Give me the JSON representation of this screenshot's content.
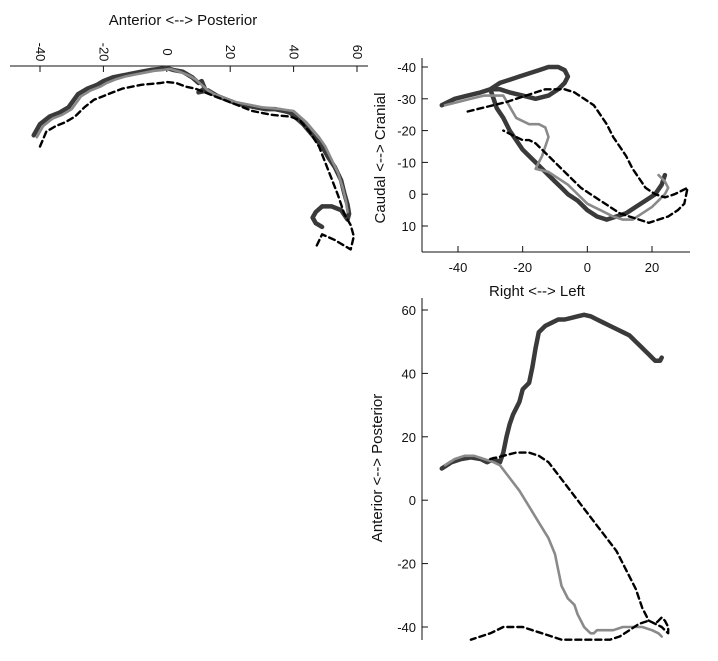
{
  "chart_data": [
    {
      "type": "line",
      "panel": "top-left",
      "xlabel": "Anterior <--> Posterior",
      "ylabel": "",
      "xticks": [
        "-40",
        "-20",
        "0",
        "20",
        "40",
        "60"
      ],
      "xlim": [
        -45,
        62
      ],
      "ylim": [
        0,
        1
      ],
      "series": [
        {
          "style": "solid-dark",
          "color": "#3a3a3a",
          "x": [
            -42,
            -40,
            -37,
            -34,
            -31,
            -28,
            -25,
            -22,
            -20,
            -17,
            -14,
            -11,
            -8,
            -5,
            -2,
            0,
            2,
            5,
            8,
            10,
            11,
            12,
            10,
            13,
            16,
            19,
            22,
            25,
            28,
            31,
            34,
            37,
            39,
            41,
            43,
            45,
            47,
            49,
            51,
            53,
            55,
            56,
            57,
            57.5,
            57,
            55,
            52,
            49,
            47,
            46,
            47,
            49
          ],
          "y": [
            0.64,
            0.7,
            0.74,
            0.76,
            0.79,
            0.86,
            0.89,
            0.91,
            0.93,
            0.95,
            0.96,
            0.97,
            0.98,
            0.99,
            0.995,
            1.0,
            0.99,
            0.98,
            0.95,
            0.92,
            0.93,
            0.89,
            0.87,
            0.88,
            0.85,
            0.83,
            0.81,
            0.8,
            0.79,
            0.78,
            0.78,
            0.77,
            0.76,
            0.73,
            0.7,
            0.66,
            0.62,
            0.58,
            0.52,
            0.47,
            0.4,
            0.33,
            0.27,
            0.22,
            0.19,
            0.24,
            0.26,
            0.26,
            0.23,
            0.2,
            0.17,
            0.15
          ]
        },
        {
          "style": "solid-light",
          "color": "#8a8a8a",
          "x": [
            -41,
            -39,
            -36,
            -33,
            -30,
            -27,
            -24,
            -21,
            -19,
            -16,
            -13,
            -10,
            -7,
            -4,
            -1,
            1,
            4,
            7,
            9,
            11,
            13,
            15,
            18,
            21,
            24,
            27,
            30,
            33,
            36,
            38,
            40,
            42,
            44,
            46,
            48,
            50,
            52,
            54,
            55.5,
            56.5,
            57
          ],
          "y": [
            0.63,
            0.69,
            0.73,
            0.75,
            0.78,
            0.85,
            0.88,
            0.9,
            0.92,
            0.94,
            0.955,
            0.965,
            0.975,
            0.985,
            0.99,
            0.995,
            0.98,
            0.96,
            0.94,
            0.91,
            0.88,
            0.86,
            0.84,
            0.82,
            0.81,
            0.8,
            0.79,
            0.785,
            0.78,
            0.775,
            0.77,
            0.74,
            0.71,
            0.67,
            0.63,
            0.58,
            0.51,
            0.44,
            0.36,
            0.29,
            0.23
          ]
        },
        {
          "style": "dashed",
          "color": "#000000",
          "x": [
            -40,
            -38,
            -35,
            -32,
            -29,
            -26,
            -23,
            -20,
            -17,
            -14,
            -11,
            -8,
            -5,
            -2,
            0,
            3,
            6,
            9,
            12,
            15,
            18,
            21,
            24,
            27,
            30,
            33,
            36,
            39,
            42,
            45,
            48,
            51,
            54,
            56,
            58,
            59,
            58,
            56,
            53,
            49,
            47
          ],
          "y": [
            0.58,
            0.66,
            0.69,
            0.71,
            0.74,
            0.79,
            0.83,
            0.85,
            0.87,
            0.89,
            0.9,
            0.91,
            0.915,
            0.92,
            0.925,
            0.92,
            0.9,
            0.89,
            0.87,
            0.85,
            0.83,
            0.81,
            0.79,
            0.77,
            0.76,
            0.75,
            0.745,
            0.74,
            0.72,
            0.66,
            0.58,
            0.45,
            0.32,
            0.22,
            0.16,
            0.1,
            0.03,
            0.05,
            0.08,
            0.11,
            0.04
          ]
        }
      ]
    },
    {
      "type": "line",
      "panel": "top-right",
      "xlabel": "Right <--> Left",
      "ylabel": "Caudal <--> Cranial",
      "xlim": [
        -50,
        32
      ],
      "ylim": [
        18,
        -41
      ],
      "xticks": [
        -40,
        -20,
        0,
        20
      ],
      "yticks": [
        -40,
        -30,
        -20,
        -10,
        0,
        10
      ],
      "series": [
        {
          "style": "solid-dark",
          "color": "#3a3a3a",
          "x": [
            -45,
            -41,
            -37,
            -33,
            -30,
            -27,
            -24,
            -21,
            -18,
            -15,
            -12,
            -9,
            -7,
            -6,
            -7,
            -9,
            -12,
            -16,
            -20,
            -24,
            -27,
            -30,
            -29,
            -28,
            -26,
            -24,
            -22,
            -20,
            -18,
            -16,
            -14,
            -12,
            -10,
            -8,
            -6,
            -3,
            0,
            3,
            6,
            9,
            12,
            15,
            18,
            21,
            23,
            24
          ],
          "y": [
            -28,
            -30,
            -31,
            -32,
            -33,
            -35,
            -36,
            -37,
            -38,
            -39,
            -40,
            -40,
            -39,
            -37,
            -35,
            -33,
            -31,
            -30,
            -31,
            -32,
            -33,
            -33,
            -30,
            -27,
            -24,
            -20,
            -17,
            -14,
            -12,
            -10,
            -8,
            -6,
            -4,
            -2,
            0,
            2,
            5,
            7,
            8,
            7,
            6,
            4,
            2,
            0,
            -3,
            -6
          ]
        },
        {
          "style": "solid-light",
          "color": "#8a8a8a",
          "x": [
            -44,
            -40,
            -36,
            -32,
            -29,
            -26,
            -22,
            -18,
            -15,
            -13,
            -12,
            -13,
            -14,
            -15,
            -16,
            -12,
            -9,
            -6,
            -4,
            -2,
            0,
            2,
            4,
            6,
            8,
            11,
            14,
            17,
            20,
            22,
            24,
            25,
            24,
            22
          ],
          "y": [
            -28,
            -29,
            -30,
            -31,
            -31,
            -31,
            -24,
            -22,
            -22,
            -21,
            -18,
            -15,
            -12,
            -10,
            -8,
            -7,
            -5,
            -3,
            -1,
            1,
            3,
            4,
            5,
            6,
            7,
            8,
            8,
            6,
            4,
            2,
            0,
            -2,
            -4,
            -6
          ]
        },
        {
          "style": "dashed",
          "color": "#000000",
          "x": [
            -37,
            -33,
            -29,
            -25,
            -22,
            -19,
            -16,
            -13,
            -10,
            -7,
            -4,
            -1,
            2,
            4,
            6,
            8,
            10,
            12,
            14,
            16,
            18,
            21,
            24,
            27,
            29,
            31,
            30,
            28,
            25,
            22,
            19,
            16,
            13,
            10,
            7,
            4,
            1,
            -2,
            -5,
            -8,
            -11,
            -14,
            -16,
            -18,
            -20,
            -22,
            -24,
            -26
          ],
          "y": [
            -26,
            -27,
            -28,
            -29,
            -30,
            -31,
            -32,
            -33,
            -33,
            -33,
            -32,
            -30,
            -28,
            -25,
            -22,
            -18,
            -15,
            -12,
            -8,
            -5,
            -2,
            0,
            1,
            0,
            -1,
            -2,
            3,
            5,
            7,
            8,
            9,
            8,
            7,
            6,
            4,
            2,
            0,
            -2,
            -5,
            -8,
            -11,
            -14,
            -16,
            -17,
            -17,
            -18,
            -19,
            -20
          ]
        }
      ]
    },
    {
      "type": "line",
      "panel": "bottom-right",
      "xlabel": "",
      "ylabel": "Anterior <--> Posterior",
      "xlim": [
        -50,
        32
      ],
      "ylim": [
        -44,
        62
      ],
      "yticks": [
        60,
        40,
        20,
        0,
        -20,
        -40
      ],
      "series": [
        {
          "style": "solid-dark",
          "color": "#3a3a3a",
          "x": [
            -45,
            -42,
            -39,
            -36,
            -33,
            -31,
            -29,
            -27,
            -26,
            -25,
            -24,
            -23,
            -22,
            -21,
            -20,
            -18,
            -17,
            -16,
            -15,
            -13,
            -11,
            -9,
            -7,
            -5,
            -3,
            -1,
            1,
            3,
            5,
            7,
            9,
            11,
            13,
            14,
            15,
            16,
            17,
            18,
            19,
            20,
            21,
            22,
            22.5,
            23
          ],
          "y": [
            10,
            12,
            13,
            13.5,
            13,
            12,
            13,
            12,
            15,
            20,
            24,
            27,
            29,
            31,
            35,
            37,
            42,
            48,
            53,
            55,
            56,
            57,
            57,
            57.5,
            58,
            58.5,
            58,
            57,
            56,
            55,
            54,
            53,
            52,
            51,
            50,
            49,
            48,
            47,
            46,
            45,
            44,
            44,
            44,
            45
          ]
        },
        {
          "style": "solid-light",
          "color": "#8a8a8a",
          "x": [
            -44,
            -41,
            -38,
            -35,
            -32,
            -29,
            -27,
            -24,
            -21,
            -18,
            -15,
            -12,
            -10,
            -9,
            -8,
            -6,
            -4,
            -3,
            -2,
            -1,
            0,
            1,
            2,
            3,
            5,
            8,
            11,
            14,
            17,
            20,
            22,
            23
          ],
          "y": [
            11,
            13,
            14,
            14,
            13,
            12,
            11,
            7,
            3,
            -2,
            -7,
            -12,
            -17,
            -22,
            -27,
            -31,
            -33,
            -36,
            -38,
            -40,
            -41,
            -42,
            -42,
            -41,
            -41,
            -41,
            -40,
            -40,
            -40,
            -41,
            -42,
            -43
          ]
        },
        {
          "style": "dashed",
          "color": "#000000",
          "x": [
            -30,
            -26,
            -22,
            -18,
            -15,
            -12,
            -9,
            -6,
            -3,
            0,
            3,
            6,
            9,
            12,
            15,
            17,
            19,
            21,
            22,
            23,
            24,
            25,
            25,
            24,
            23,
            21,
            19,
            16,
            13,
            10,
            7,
            4,
            1,
            -2,
            -5,
            -8,
            -11,
            -14,
            -17,
            -20,
            -23,
            -26,
            -28,
            -30,
            -33,
            -36
          ],
          "y": [
            13,
            14,
            15,
            15,
            14,
            12,
            8,
            4,
            0,
            -4,
            -8,
            -12,
            -16,
            -22,
            -28,
            -34,
            -38,
            -39,
            -38,
            -37,
            -38,
            -40,
            -42,
            -41,
            -40,
            -39,
            -38,
            -39,
            -41,
            -43,
            -44,
            -44,
            -44,
            -44,
            -44,
            -44,
            -43,
            -42,
            -41,
            -40,
            -40,
            -40,
            -41,
            -42,
            -43,
            -44
          ]
        }
      ]
    }
  ]
}
